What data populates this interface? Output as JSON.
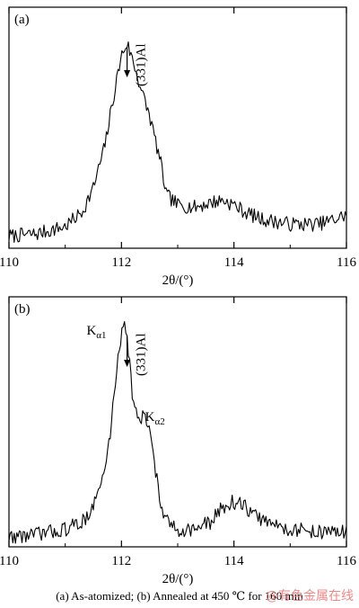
{
  "figure": {
    "caption": "(a) As-atomized; (b) Annealed at 450 ℃ for 160 min",
    "watermark": "@有色金属在线"
  },
  "chart_data": [
    {
      "type": "line",
      "panel_label": "(a)",
      "xlabel": "2θ/(°)",
      "ylabel": "",
      "xlim": [
        110,
        116
      ],
      "xticks": [
        110,
        112,
        114,
        116
      ],
      "ylim": [
        0,
        1
      ],
      "grid": false,
      "annotations": [
        {
          "text": "(331)Al",
          "x": 112.1,
          "arrow": true
        }
      ],
      "series": [
        {
          "x": [
            110.0,
            110.5,
            111.0,
            111.3,
            111.5,
            111.7,
            111.8,
            111.9,
            112.0,
            112.1,
            112.2,
            112.3,
            112.4,
            112.5,
            112.6,
            112.7,
            112.8,
            113.0,
            113.3,
            113.6,
            113.8,
            114.0,
            114.2,
            114.5,
            115.0,
            115.5,
            115.8,
            116.0
          ],
          "y": [
            0.05,
            0.06,
            0.09,
            0.15,
            0.25,
            0.42,
            0.55,
            0.68,
            0.8,
            0.85,
            0.78,
            0.7,
            0.62,
            0.55,
            0.45,
            0.35,
            0.22,
            0.18,
            0.17,
            0.19,
            0.2,
            0.18,
            0.15,
            0.12,
            0.1,
            0.1,
            0.12,
            0.14
          ]
        }
      ]
    },
    {
      "type": "line",
      "panel_label": "(b)",
      "xlabel": "2θ/(°)",
      "ylabel": "",
      "xlim": [
        110,
        116
      ],
      "xticks": [
        110,
        112,
        114,
        116
      ],
      "ylim": [
        0,
        1
      ],
      "grid": false,
      "annotations": [
        {
          "text": "(331)Al",
          "x": 112.1,
          "arrow": true
        },
        {
          "text": "K",
          "subscript": "α1",
          "x": 112.05
        },
        {
          "text": "K",
          "subscript": "α2",
          "x": 112.5
        }
      ],
      "series": [
        {
          "x": [
            110.0,
            110.5,
            111.0,
            111.3,
            111.5,
            111.7,
            111.8,
            111.9,
            112.0,
            112.05,
            112.1,
            112.2,
            112.3,
            112.4,
            112.5,
            112.6,
            112.7,
            112.8,
            113.0,
            113.3,
            113.6,
            113.8,
            114.0,
            114.2,
            114.4,
            114.7,
            115.0,
            115.5,
            116.0
          ],
          "y": [
            0.04,
            0.05,
            0.07,
            0.1,
            0.16,
            0.3,
            0.45,
            0.68,
            0.86,
            0.92,
            0.84,
            0.6,
            0.5,
            0.52,
            0.48,
            0.32,
            0.16,
            0.1,
            0.07,
            0.07,
            0.1,
            0.16,
            0.18,
            0.16,
            0.12,
            0.09,
            0.07,
            0.06,
            0.06
          ]
        }
      ]
    }
  ]
}
